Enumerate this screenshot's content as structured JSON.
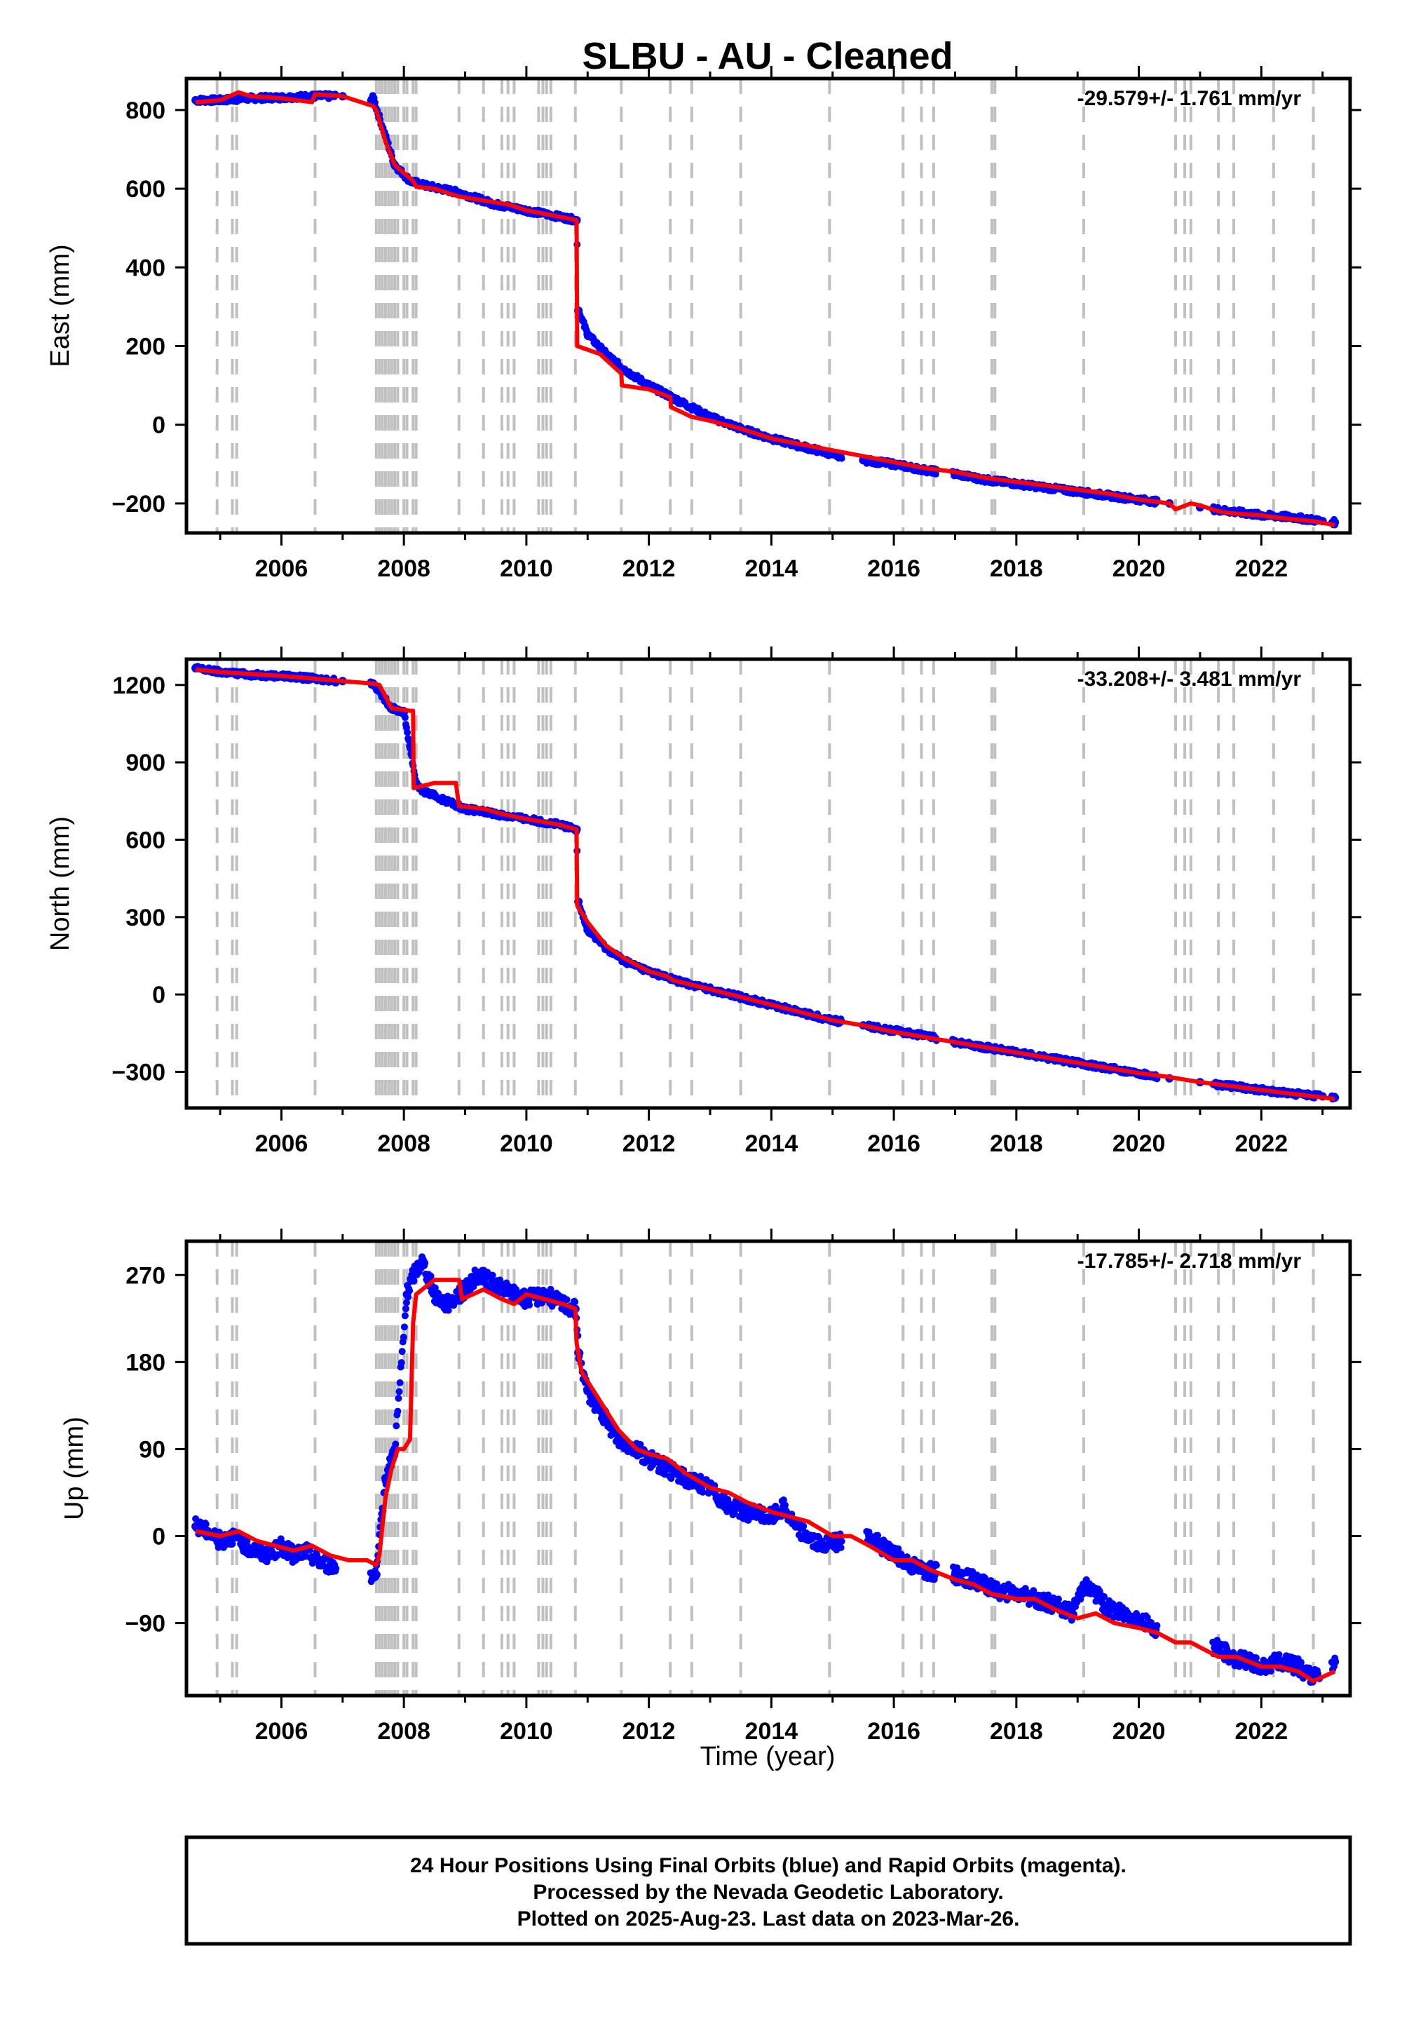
{
  "title": "SLBU  - AU - Cleaned",
  "footer": {
    "line1": "24 Hour Positions Using Final Orbits (blue) and Rapid Orbits (magenta).",
    "line2": "Processed by the Nevada Geodetic Laboratory.",
    "line3": "Plotted on 2025-Aug-23. Last data on 2023-Mar-26."
  },
  "colors": {
    "data": "#0000ff",
    "model": "#ff0000",
    "offsets": "#c0c0c0",
    "frame": "#000000"
  },
  "offset_years": [
    2004.95,
    2005.2,
    2005.27,
    2006.55,
    2007.55,
    2007.6,
    2007.65,
    2007.7,
    2007.75,
    2007.8,
    2007.85,
    2007.9,
    2008.0,
    2008.05,
    2008.15,
    2008.2,
    2008.9,
    2009.3,
    2009.6,
    2009.7,
    2009.8,
    2010.2,
    2010.27,
    2010.33,
    2010.4,
    2010.8,
    2011.55,
    2012.35,
    2012.7,
    2013.5,
    2014.95,
    2016.15,
    2016.45,
    2016.65,
    2017.6,
    2017.65,
    2019.1,
    2020.6,
    2020.75,
    2020.85,
    2021.3,
    2021.55,
    2022.2,
    2022.85
  ],
  "chart_data": [
    {
      "type": "scatter",
      "ylabel": "East (mm)",
      "xlabel": "",
      "rate": "-29.579+/- 1.761 mm/yr",
      "xlim": [
        2004.45,
        2023.45
      ],
      "ylim": [
        -275,
        880
      ],
      "xticks": [
        2006,
        2008,
        2010,
        2012,
        2014,
        2016,
        2018,
        2020,
        2022
      ],
      "xtick_labels": [
        "2006",
        "2008",
        "2010",
        "2012",
        "2014",
        "2016",
        "2018",
        "2020",
        "2022"
      ],
      "yticks": [
        -200,
        0,
        200,
        400,
        600,
        800
      ],
      "ytick_labels": [
        "−200",
        "0",
        "200",
        "400",
        "600",
        "800"
      ],
      "series": [
        {
          "role": "observed",
          "x": [
            2004.6,
            2005.0,
            2005.5,
            2006.0,
            2006.5,
            2007.0,
            2007.5,
            2007.85,
            2008.1,
            2008.3,
            2008.6,
            2008.9,
            2009.5,
            2010.0,
            2010.5,
            2010.82,
            2010.85,
            2011.0,
            2011.3,
            2011.6,
            2012.0,
            2012.5,
            2013.0,
            2013.5,
            2014.0,
            2014.5,
            2015.0,
            2015.5,
            2016.0,
            2016.5,
            2017.0,
            2017.5,
            2018.0,
            2018.5,
            2019.0,
            2019.5,
            2020.0,
            2020.5,
            2021.0,
            2021.5,
            2022.0,
            2022.5,
            2023.0,
            2023.2
          ],
          "y": [
            825,
            825,
            830,
            832,
            835,
            835,
            830,
            660,
            620,
            610,
            600,
            590,
            560,
            545,
            530,
            520,
            290,
            230,
            180,
            140,
            100,
            60,
            20,
            -10,
            -35,
            -55,
            -75,
            -90,
            -100,
            -115,
            -125,
            -140,
            -150,
            -160,
            -170,
            -180,
            -190,
            -200,
            -210,
            -220,
            -230,
            -235,
            -245,
            -248
          ]
        },
        {
          "role": "model",
          "x": [
            2004.6,
            2005.0,
            2005.3,
            2005.5,
            2006.0,
            2006.5,
            2006.55,
            2007.0,
            2007.5,
            2007.55,
            2007.7,
            2007.85,
            2008.0,
            2008.15,
            2008.2,
            2008.5,
            2008.9,
            2009.3,
            2009.7,
            2010.0,
            2010.5,
            2010.82,
            2010.83,
            2011.2,
            2011.55,
            2011.56,
            2012.0,
            2012.35,
            2012.36,
            2012.7,
            2013.0,
            2013.5,
            2014.0,
            2014.5,
            2015.0,
            2015.5,
            2016.0,
            2016.5,
            2017.0,
            2017.5,
            2018.0,
            2018.5,
            2019.0,
            2019.5,
            2020.0,
            2020.5,
            2020.6,
            2020.85,
            2021.0,
            2021.3,
            2021.5,
            2022.0,
            2022.2,
            2022.5,
            2022.85,
            2023.2
          ],
          "y": [
            820,
            825,
            845,
            835,
            830,
            820,
            840,
            835,
            810,
            800,
            720,
            660,
            640,
            620,
            605,
            600,
            580,
            570,
            560,
            545,
            530,
            520,
            200,
            180,
            130,
            100,
            90,
            70,
            45,
            20,
            10,
            -10,
            -35,
            -50,
            -65,
            -80,
            -95,
            -110,
            -120,
            -135,
            -145,
            -155,
            -165,
            -175,
            -190,
            -200,
            -215,
            -200,
            -205,
            -220,
            -225,
            -230,
            -235,
            -240,
            -245,
            -255
          ]
        }
      ]
    },
    {
      "type": "scatter",
      "ylabel": "North (mm)",
      "xlabel": "",
      "rate": "-33.208+/- 3.481 mm/yr",
      "xlim": [
        2004.45,
        2023.45
      ],
      "ylim": [
        -440,
        1300
      ],
      "xticks": [
        2006,
        2008,
        2010,
        2012,
        2014,
        2016,
        2018,
        2020,
        2022
      ],
      "xtick_labels": [
        "2006",
        "2008",
        "2010",
        "2012",
        "2014",
        "2016",
        "2018",
        "2020",
        "2022"
      ],
      "yticks": [
        -300,
        0,
        300,
        600,
        900,
        1200
      ],
      "ytick_labels": [
        "−300",
        "0",
        "300",
        "600",
        "900",
        "1200"
      ],
      "series": [
        {
          "role": "observed",
          "x": [
            2004.6,
            2005.0,
            2005.5,
            2006.0,
            2006.5,
            2007.0,
            2007.5,
            2007.8,
            2008.0,
            2008.2,
            2008.3,
            2008.5,
            2008.7,
            2009.0,
            2009.5,
            2010.0,
            2010.5,
            2010.82,
            2010.85,
            2011.0,
            2011.3,
            2011.6,
            2012.0,
            2012.5,
            2013.0,
            2013.5,
            2014.0,
            2014.5,
            2015.0,
            2015.5,
            2016.0,
            2016.5,
            2017.0,
            2017.5,
            2018.0,
            2018.5,
            2019.0,
            2019.5,
            2020.0,
            2020.5,
            2021.0,
            2021.5,
            2022.0,
            2022.5,
            2023.0,
            2023.2
          ],
          "y": [
            1265,
            1250,
            1240,
            1235,
            1225,
            1215,
            1205,
            1110,
            1095,
            820,
            790,
            770,
            750,
            720,
            700,
            680,
            660,
            640,
            360,
            250,
            180,
            130,
            90,
            50,
            20,
            -10,
            -40,
            -70,
            -100,
            -120,
            -140,
            -160,
            -185,
            -205,
            -225,
            -245,
            -265,
            -285,
            -305,
            -325,
            -340,
            -355,
            -370,
            -385,
            -395,
            -400
          ]
        },
        {
          "role": "model",
          "x": [
            2004.6,
            2005.0,
            2006.0,
            2007.0,
            2007.5,
            2007.6,
            2007.8,
            2008.1,
            2008.15,
            2008.16,
            2008.5,
            2008.85,
            2008.9,
            2009.3,
            2009.6,
            2010.0,
            2010.5,
            2010.82,
            2010.83,
            2011.0,
            2011.3,
            2011.6,
            2012.0,
            2012.3,
            2012.4,
            2013.0,
            2013.5,
            2014.0,
            2014.5,
            2015.0,
            2015.5,
            2016.0,
            2016.5,
            2017.0,
            2017.5,
            2018.0,
            2018.5,
            2019.0,
            2019.5,
            2020.0,
            2020.5,
            2021.0,
            2021.5,
            2022.0,
            2022.5,
            2023.2
          ],
          "y": [
            1260,
            1250,
            1235,
            1215,
            1205,
            1200,
            1110,
            1100,
            1100,
            800,
            820,
            820,
            730,
            720,
            700,
            680,
            660,
            640,
            345,
            280,
            190,
            140,
            90,
            70,
            55,
            20,
            -10,
            -40,
            -70,
            -100,
            -120,
            -145,
            -165,
            -185,
            -205,
            -225,
            -245,
            -265,
            -285,
            -305,
            -320,
            -340,
            -355,
            -370,
            -385,
            -405
          ]
        }
      ]
    },
    {
      "type": "scatter",
      "ylabel": "Up (mm)",
      "xlabel": "Time (year)",
      "rate": "-17.785+/- 2.718 mm/yr",
      "xlim": [
        2004.45,
        2023.45
      ],
      "ylim": [
        -165,
        305
      ],
      "xticks": [
        2006,
        2008,
        2010,
        2012,
        2014,
        2016,
        2018,
        2020,
        2022
      ],
      "xtick_labels": [
        "2006",
        "2008",
        "2010",
        "2012",
        "2014",
        "2016",
        "2018",
        "2020",
        "2022"
      ],
      "yticks": [
        -90,
        0,
        90,
        180,
        270
      ],
      "ytick_labels": [
        "−90",
        "0",
        "90",
        "180",
        "270"
      ],
      "series": [
        {
          "role": "observed",
          "x": [
            2004.6,
            2004.8,
            2005.0,
            2005.2,
            2005.4,
            2005.6,
            2005.8,
            2006.0,
            2006.2,
            2006.4,
            2006.6,
            2006.8,
            2007.55,
            2007.7,
            2007.85,
            2008.05,
            2008.15,
            2008.3,
            2008.5,
            2008.7,
            2009.0,
            2009.2,
            2009.5,
            2009.8,
            2010.0,
            2010.3,
            2010.6,
            2010.8,
            2010.85,
            2011.0,
            2011.2,
            2011.5,
            2011.8,
            2012.0,
            2012.3,
            2012.6,
            2013.0,
            2013.3,
            2013.6,
            2014.0,
            2014.2,
            2014.4,
            2014.6,
            2014.8,
            2015.6,
            2015.8,
            2016.3,
            2016.5,
            2017.0,
            2017.3,
            2017.6,
            2018.0,
            2018.3,
            2018.6,
            2018.9,
            2019.1,
            2019.3,
            2019.5,
            2020.0,
            2020.2,
            2021.3,
            2021.5,
            2021.8,
            2022.0,
            2022.3,
            2022.6,
            2022.8,
            2023.2
          ],
          "y": [
            10,
            5,
            -5,
            0,
            -10,
            -15,
            -20,
            -10,
            -20,
            -15,
            -25,
            -30,
            -40,
            60,
            90,
            250,
            270,
            285,
            250,
            240,
            255,
            270,
            260,
            250,
            245,
            250,
            240,
            235,
            190,
            150,
            130,
            100,
            90,
            80,
            70,
            60,
            50,
            30,
            25,
            20,
            30,
            10,
            0,
            -10,
            0,
            -10,
            -30,
            -35,
            -40,
            -45,
            -55,
            -60,
            -65,
            -70,
            -80,
            -50,
            -60,
            -75,
            -85,
            -95,
            -115,
            -125,
            -130,
            -135,
            -130,
            -135,
            -145,
            -130
          ]
        },
        {
          "role": "model",
          "x": [
            2004.6,
            2005.0,
            2005.3,
            2005.6,
            2005.9,
            2006.2,
            2006.5,
            2006.8,
            2007.1,
            2007.4,
            2007.55,
            2007.6,
            2007.7,
            2007.8,
            2007.9,
            2008.0,
            2008.1,
            2008.15,
            2008.2,
            2008.5,
            2008.9,
            2008.95,
            2009.3,
            2009.6,
            2009.8,
            2010.0,
            2010.3,
            2010.6,
            2010.8,
            2010.82,
            2010.9,
            2011.2,
            2011.5,
            2011.8,
            2012.0,
            2012.3,
            2012.6,
            2013.0,
            2013.3,
            2013.6,
            2014.0,
            2014.3,
            2014.6,
            2015.0,
            2015.3,
            2015.6,
            2016.0,
            2016.3,
            2016.6,
            2017.0,
            2017.3,
            2017.6,
            2018.0,
            2018.3,
            2018.6,
            2019.0,
            2019.3,
            2019.6,
            2020.0,
            2020.3,
            2020.6,
            2020.85,
            2021.0,
            2021.3,
            2021.6,
            2022.0,
            2022.3,
            2022.6,
            2022.85,
            2023.2
          ],
          "y": [
            5,
            0,
            5,
            -5,
            -10,
            -15,
            -10,
            -20,
            -25,
            -25,
            -30,
            -20,
            40,
            70,
            90,
            90,
            100,
            220,
            250,
            265,
            265,
            245,
            255,
            245,
            240,
            250,
            245,
            240,
            235,
            200,
            170,
            140,
            110,
            90,
            85,
            80,
            65,
            50,
            45,
            35,
            25,
            20,
            15,
            0,
            0,
            -10,
            -25,
            -25,
            -35,
            -45,
            -50,
            -60,
            -65,
            -65,
            -75,
            -85,
            -80,
            -90,
            -95,
            -100,
            -110,
            -110,
            -115,
            -125,
            -125,
            -135,
            -135,
            -140,
            -150,
            -140
          ]
        }
      ]
    }
  ]
}
